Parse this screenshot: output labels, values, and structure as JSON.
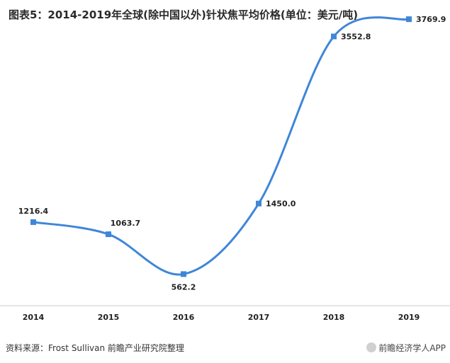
{
  "title": "图表5：2014-2019年全球(除中国以外)针状焦平均价格(单位：美元/吨)",
  "source": "资料来源：Frost Sullivan  前瞻产业研究院整理",
  "brand": "前瞻经济学人APP",
  "colors": {
    "line": "#3f86d8",
    "marker": "#3f86d8",
    "axis": "#cccccc"
  },
  "chart_data": {
    "type": "line",
    "categories": [
      "2014",
      "2015",
      "2016",
      "2017",
      "2018",
      "2019"
    ],
    "series": [
      {
        "values": [
          1216.4,
          1063.7,
          562.2,
          1450.0,
          3552.8,
          3769.9
        ]
      }
    ],
    "data_labels": [
      "1216.4",
      "1063.7",
      "562.2",
      "1450.0",
      "3552.8",
      "3769.9"
    ],
    "label_position": [
      "above",
      "above-right",
      "below",
      "right",
      "right",
      "right"
    ],
    "title": "图表5：2014-2019年全球(除中国以外)针状焦平均价格(单位：美元/吨)",
    "xlabel": "",
    "ylabel": "",
    "grid": false,
    "smooth": true
  }
}
